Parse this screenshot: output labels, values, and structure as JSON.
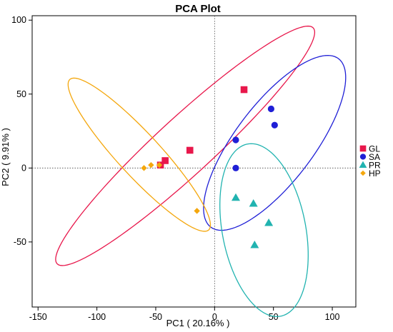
{
  "chart_data": {
    "type": "scatter",
    "title": "PCA Plot",
    "xlabel": "PC1 ( 20.16% )",
    "ylabel": "PC2 ( 9.91% )",
    "xlim": [
      -155,
      120
    ],
    "ylim": [
      -94,
      103
    ],
    "xticks": [
      -150,
      -100,
      -50,
      0,
      50,
      100
    ],
    "yticks": [
      -50,
      0,
      50,
      100
    ],
    "grid": false,
    "reference_lines": {
      "x": 0,
      "y": 0,
      "style": "dotted"
    },
    "legend_position": "right",
    "series": [
      {
        "name": "GL",
        "marker": "square",
        "color": "#E8174B",
        "points": [
          [
            25,
            53
          ],
          [
            -21,
            12
          ],
          [
            -42,
            5
          ],
          [
            -46,
            2
          ]
        ],
        "ellipse": {
          "cx": -25,
          "cy": 15,
          "rx": 135,
          "ry": 21,
          "angle_deg": 35.9
        }
      },
      {
        "name": "SA",
        "marker": "circle",
        "color": "#1F1FD6",
        "points": [
          [
            48,
            40
          ],
          [
            51,
            29
          ],
          [
            18,
            19
          ],
          [
            18,
            0
          ]
        ],
        "ellipse": {
          "cx": 51,
          "cy": 17,
          "rx": 79,
          "ry": 30,
          "angle_deg": 44.2
        }
      },
      {
        "name": "PR",
        "marker": "triangle",
        "color": "#21B3B0",
        "points": [
          [
            18,
            -20
          ],
          [
            33,
            -24
          ],
          [
            46,
            -37
          ],
          [
            34,
            -52
          ]
        ],
        "ellipse": {
          "cx": 42,
          "cy": -42,
          "rx": 60,
          "ry": 35,
          "angle_deg": -73.9
        }
      },
      {
        "name": "HP",
        "marker": "diamond",
        "color": "#F4A70D",
        "points": [
          [
            -60,
            0
          ],
          [
            -54,
            2
          ],
          [
            -47,
            2
          ],
          [
            -15,
            -29
          ]
        ],
        "ellipse": {
          "cx": -64,
          "cy": 9,
          "rx": 78,
          "ry": 16,
          "angle_deg": -40.2
        }
      }
    ]
  }
}
